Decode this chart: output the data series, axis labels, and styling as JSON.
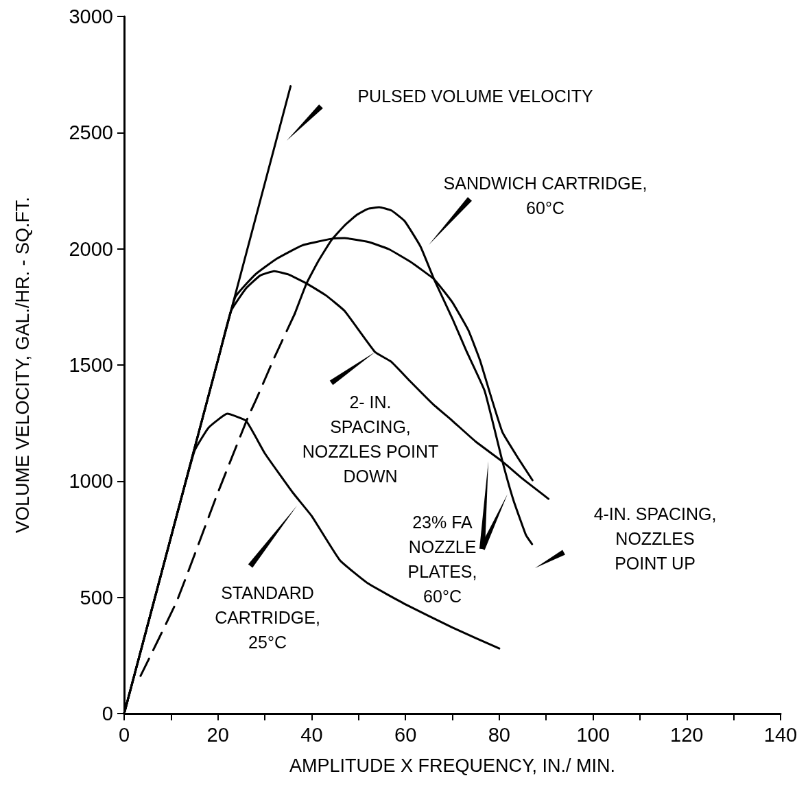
{
  "chart_data": {
    "type": "line",
    "xlabel": "AMPLITUDE X FREQUENCY, IN./ MIN.",
    "ylabel": "VOLUME VELOCITY, GAL./HR. - SQ.FT.",
    "xlim": [
      0,
      140
    ],
    "ylim": [
      0,
      3000
    ],
    "xticks": [
      0,
      {
        "value": 10,
        "label": null
      },
      20,
      {
        "value": 30,
        "label": null
      },
      40,
      {
        "value": 50,
        "label": null
      },
      60,
      {
        "value": 70,
        "label": null
      },
      80,
      {
        "value": 90,
        "label": null
      },
      100,
      {
        "value": 110,
        "label": null
      },
      120,
      {
        "value": 130,
        "label": null
      },
      140
    ],
    "yticks": [
      0,
      500,
      1000,
      1500,
      2000,
      2500,
      3000
    ],
    "grid": false,
    "marker": "none",
    "series": [
      {
        "color": "#000000",
        "line_style": "solid",
        "x": [
          0,
          35.5
        ],
        "values": [
          0,
          2700
        ]
      },
      {
        "color": "#000000",
        "line_style": "solid",
        "x": [
          0,
          10,
          15,
          18,
          22,
          26,
          30,
          36,
          40,
          46,
          52,
          60,
          70,
          80
        ],
        "values": [
          0,
          760,
          1130,
          1230,
          1290,
          1260,
          1120,
          950,
          850,
          660,
          560,
          470,
          370,
          280
        ]
      },
      {
        "color": "#000000",
        "line_style": "solid",
        "x": [
          0,
          10,
          20,
          22.8,
          26,
          29,
          32,
          35,
          38.9,
          43,
          47,
          53.5,
          56.9,
          61,
          66,
          70,
          75,
          80.7,
          85,
          90.5
        ],
        "values": [
          0,
          760,
          1520,
          1733,
          1830,
          1885,
          1904,
          1890,
          1851,
          1800,
          1733,
          1556,
          1515,
          1430,
          1329,
          1260,
          1170,
          1084,
          1010,
          924
        ]
      },
      {
        "color": "#000000",
        "line_style": "solid",
        "x": [
          0,
          10,
          20,
          23.7,
          28,
          32.5,
          38,
          44.2,
          47,
          52,
          56.4,
          61,
          66.1,
          70,
          73.4,
          75.9,
          78,
          80.7,
          84,
          87.1
        ],
        "values": [
          0,
          760,
          1520,
          1792,
          1890,
          1957,
          2015,
          2043,
          2046,
          2030,
          1999,
          1945,
          1869,
          1770,
          1650,
          1520,
          1380,
          1210,
          1100,
          1004
        ]
      },
      {
        "color": "#000000",
        "line_style": "dashed",
        "x": [
          3.5,
          11.3,
          19.6,
          26.3,
          28.1,
          32,
          36.4
        ],
        "values": [
          162,
          487,
          930,
          1270,
          1349,
          1530,
          1721
        ]
      },
      {
        "color": "#000000",
        "line_style": "solid",
        "x": [
          36.4,
          38.9,
          41.5,
          44.2,
          47,
          49.6,
          52,
          54.4,
          57,
          59.8,
          63.2,
          66.1,
          70,
          73,
          76.9,
          80.7,
          83,
          85.7,
          87
        ],
        "values": [
          1721,
          1851,
          1950,
          2037,
          2100,
          2146,
          2172,
          2179,
          2165,
          2120,
          2010,
          1869,
          1700,
          1560,
          1388,
          1084,
          920,
          768,
          729
        ]
      }
    ],
    "annotations": [
      "PULSED VOLUME VELOCITY",
      "SANDWICH CARTRIDGE,\n60°C",
      "2- IN.\nSPACING,\nNOZZLES POINT\nDOWN",
      "STANDARD\nCARTRIDGE,\n25°C",
      "23% FA\nNOZZLE\nPLATES,\n60°C",
      "4-IN. SPACING,\nNOZZLES\nPOINT UP"
    ]
  }
}
